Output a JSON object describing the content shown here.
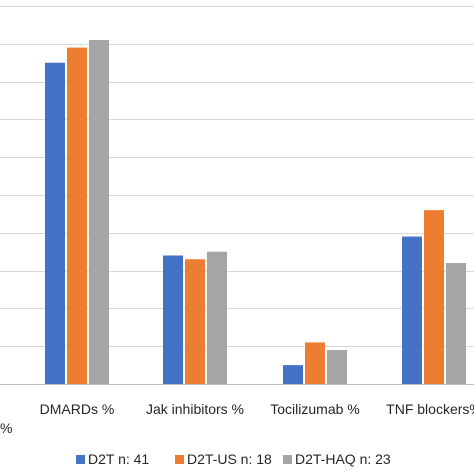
{
  "chart_data": {
    "type": "bar",
    "categories": [
      "DMARDs %",
      "Jak inhibitors %",
      "Tocilizumab %",
      "TNF blockers%"
    ],
    "series": [
      {
        "name": "D2T n: 41",
        "color": "#4472C4",
        "values": [
          85,
          34,
          5,
          39
        ]
      },
      {
        "name": "D2T-US n: 18",
        "color": "#ED7D31",
        "values": [
          89,
          33,
          11,
          46
        ]
      },
      {
        "name": "D2T-HAQ n: 23",
        "color": "#A5A5A5",
        "values": [
          91,
          35,
          9,
          32
        ]
      }
    ],
    "title": "",
    "xlabel": "",
    "ylabel": "",
    "ylim": [
      0,
      100
    ],
    "y_gridline_step": 10,
    "y_tick_fragment": "%",
    "grid": true,
    "legend": "bottom"
  }
}
